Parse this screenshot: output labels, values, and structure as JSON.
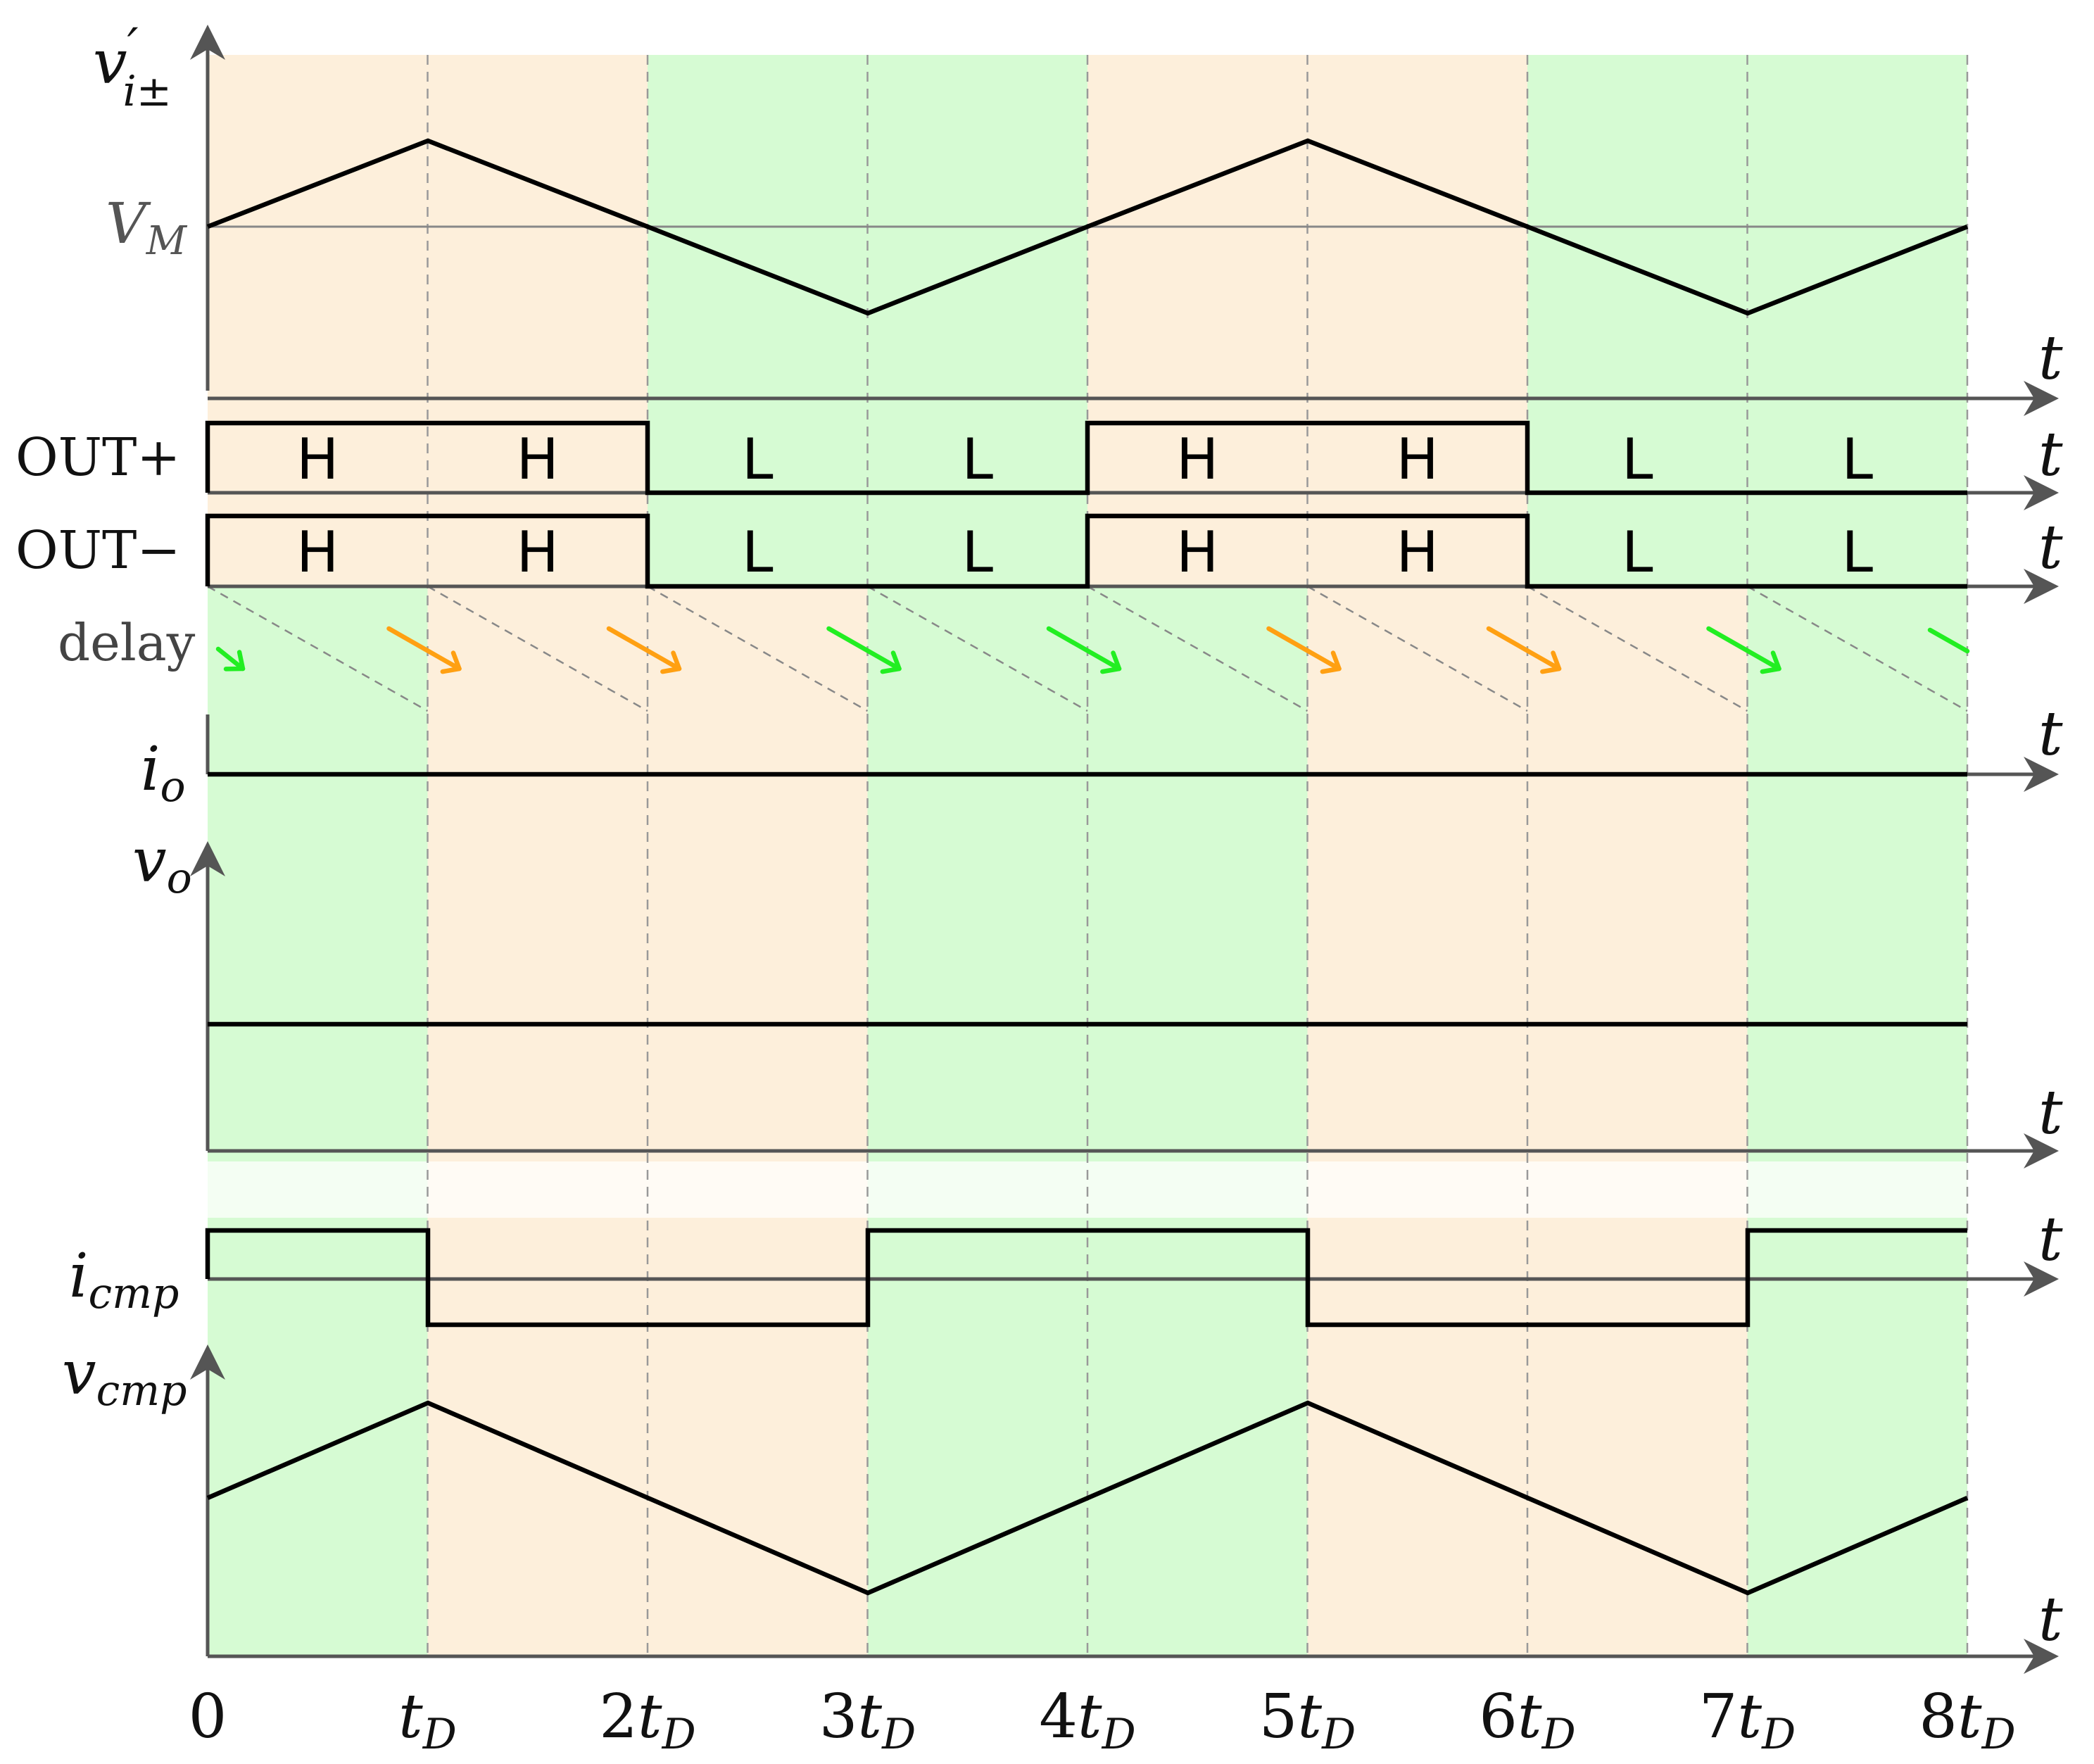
{
  "labels": {
    "vi_main": "v",
    "vi_prime": "′",
    "vi_sub": "i±",
    "vm_main": "V",
    "vm_sub": "M",
    "out_plus": "OUT+",
    "out_minus": "OUT−",
    "delay": "delay",
    "io_main": "i",
    "io_sub": "o",
    "vo_main": "v",
    "vo_sub": "o",
    "icmp_main": "i",
    "icmp_sub": "cmp",
    "vcmp_main": "v",
    "vcmp_sub": "cmp",
    "t": "t",
    "td_main": "t",
    "td_sub": "D"
  },
  "x_ticks": [
    "0",
    "",
    "2",
    "3",
    "4",
    "5",
    "6",
    "7",
    "8"
  ],
  "out_plus_states": [
    "H",
    "H",
    "L",
    "L",
    "H",
    "H",
    "L",
    "L"
  ],
  "out_minus_states": [
    "H",
    "H",
    "L",
    "L",
    "H",
    "H",
    "L",
    "L"
  ],
  "region_colors": {
    "orange": "#fdefdb",
    "green": "#d6fbd3"
  },
  "arrow_colors": {
    "green": "#22ee22",
    "orange": "#ffa012"
  }
}
